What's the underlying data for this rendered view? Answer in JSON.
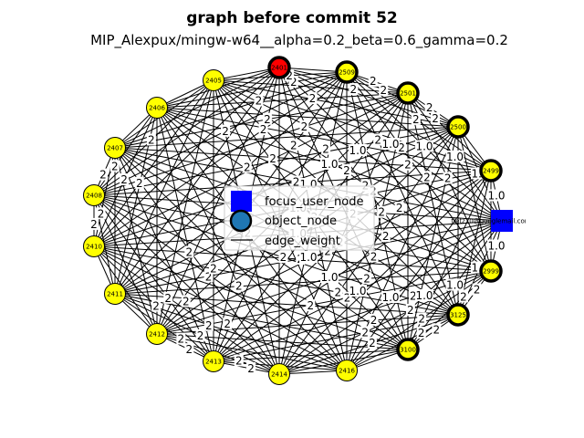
{
  "title": "graph before commit 52",
  "subtitle": "MIP_Alexpux/mingw-w64__alpha=0.2_beta=0.6_gamma=0.2",
  "colors": {
    "yellow": "#ffff00",
    "red": "#ff0000",
    "blue": "#0000ff",
    "legend_object": "#1f77b4",
    "edge": "#000000"
  },
  "focus_user": {
    "id": "focus-user",
    "label": "ktietz70@googlemail.com"
  },
  "nodes": [
    {
      "id": "2401",
      "label": "2401",
      "color": "red",
      "thick": true
    },
    {
      "id": "2509",
      "label": "2509",
      "color": "yellow",
      "thick": true
    },
    {
      "id": "2501",
      "label": "2501",
      "color": "yellow",
      "thick": true
    },
    {
      "id": "2500",
      "label": "2500",
      "color": "yellow",
      "thick": true
    },
    {
      "id": "2499",
      "label": "2499",
      "color": "yellow",
      "thick": true
    },
    {
      "id": "2999",
      "label": "2999",
      "color": "yellow",
      "thick": true
    },
    {
      "id": "3125",
      "label": "3125",
      "color": "yellow",
      "thick": true
    },
    {
      "id": "3100",
      "label": "3100",
      "color": "yellow",
      "thick": true
    },
    {
      "id": "2416",
      "label": "2416",
      "color": "yellow",
      "thick": false
    },
    {
      "id": "2414",
      "label": "2414",
      "color": "yellow",
      "thick": false
    },
    {
      "id": "2413",
      "label": "2413",
      "color": "yellow",
      "thick": false
    },
    {
      "id": "2412",
      "label": "2412",
      "color": "yellow",
      "thick": false
    },
    {
      "id": "2411",
      "label": "2411",
      "color": "yellow",
      "thick": false
    },
    {
      "id": "2410",
      "label": "2410",
      "color": "yellow",
      "thick": false
    },
    {
      "id": "2408",
      "label": "2408",
      "color": "yellow",
      "thick": false
    },
    {
      "id": "2407",
      "label": "2407",
      "color": "yellow",
      "thick": false
    },
    {
      "id": "2406",
      "label": "2406",
      "color": "yellow",
      "thick": false
    },
    {
      "id": "2405",
      "label": "2405",
      "color": "yellow",
      "thick": false
    }
  ],
  "edge_weights": {
    "object_object": "2",
    "user_object": "1.0"
  },
  "legend": {
    "focus_user_node": "focus_user_node",
    "object_node": "object_node",
    "edge_weight": "edge_weight"
  }
}
